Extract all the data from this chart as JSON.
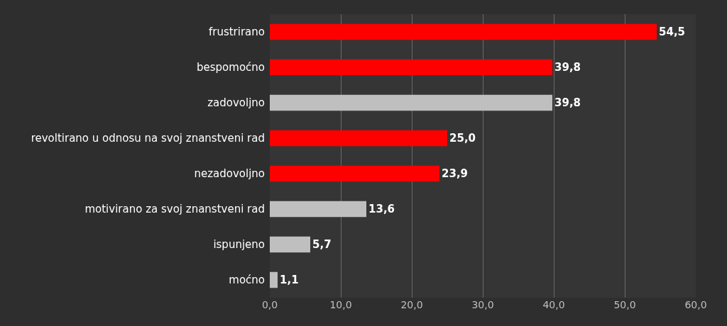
{
  "chart_data": {
    "type": "bar",
    "orientation": "horizontal",
    "categories": [
      "frustrirano",
      "bespomoćno",
      "zadovoljno",
      "revoltirano u odnosu na svoj znanstveni rad",
      "nezadovoljno",
      "motivirano za svoj znanstveni rad",
      "ispunjeno",
      "moćno"
    ],
    "values": [
      54.5,
      39.8,
      39.8,
      25.0,
      23.9,
      13.6,
      5.7,
      1.1
    ],
    "colors": [
      "#ff0000",
      "#ff0000",
      "#bfbfbf",
      "#ff0000",
      "#ff0000",
      "#bfbfbf",
      "#bfbfbf",
      "#bfbfbf"
    ],
    "value_labels": [
      "54,5",
      "39,8",
      "39,8",
      "25,0",
      "23,9",
      "13,6",
      "5,7",
      "1,1"
    ],
    "xlim": [
      0,
      60
    ],
    "xticks": [
      {
        "value": 0,
        "label": "0,0"
      },
      {
        "value": 10,
        "label": "10,0"
      },
      {
        "value": 20,
        "label": "20,0"
      },
      {
        "value": 30,
        "label": "30,0"
      },
      {
        "value": 40,
        "label": "40,0"
      },
      {
        "value": 50,
        "label": "50,0"
      },
      {
        "value": 60,
        "label": "60,0"
      }
    ],
    "grid": "x",
    "legend": false
  }
}
